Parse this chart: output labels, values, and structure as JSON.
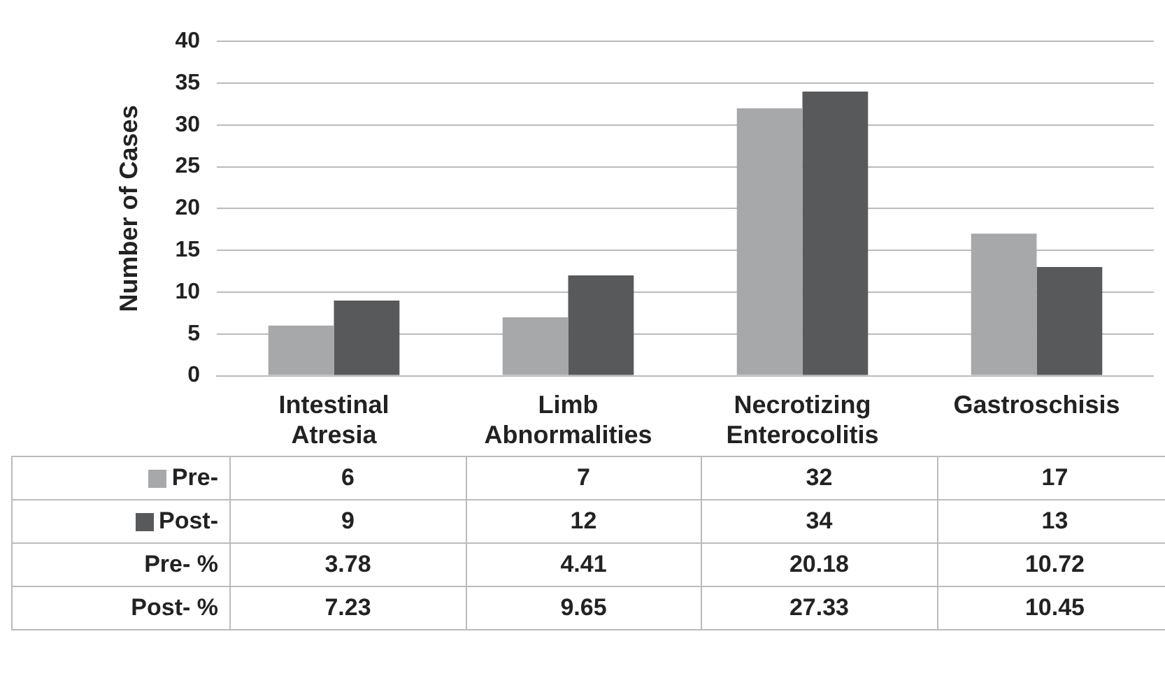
{
  "chart_data": {
    "type": "bar",
    "ylabel": "Number of Cases",
    "categories": [
      "Intestinal Atresia",
      "Limb Abnormalities",
      "Necrotizing Enterocolitis",
      "Gastroschisis"
    ],
    "series": [
      {
        "name": "Pre-",
        "color": "#a7a8aa",
        "values": [
          6,
          7,
          32,
          17
        ]
      },
      {
        "name": "Post-",
        "color": "#58595b",
        "values": [
          9,
          12,
          34,
          13
        ]
      },
      {
        "name": "Pre- %",
        "values": [
          null,
          null,
          null,
          null
        ],
        "value_labels": [
          "3.78",
          "4.41",
          "20.18",
          "10.72"
        ]
      },
      {
        "name": "Post- %",
        "values": [
          null,
          null,
          null,
          null
        ],
        "value_labels": [
          "7.23",
          "9.65",
          "27.33",
          "10.45"
        ]
      }
    ],
    "ylim": [
      0,
      40
    ],
    "yticks": [
      0,
      5,
      10,
      15,
      20,
      25,
      30,
      35,
      40
    ],
    "grid": "y",
    "legend": "bottom",
    "data_labels": true
  }
}
